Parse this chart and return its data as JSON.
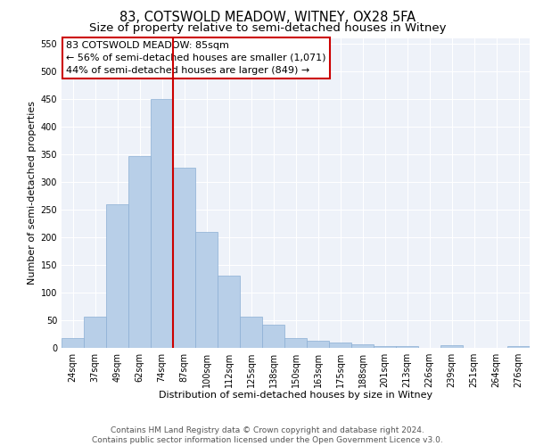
{
  "title": "83, COTSWOLD MEADOW, WITNEY, OX28 5FA",
  "subtitle": "Size of property relative to semi-detached houses in Witney",
  "xlabel": "Distribution of semi-detached houses by size in Witney",
  "ylabel": "Number of semi-detached properties",
  "categories": [
    "24sqm",
    "37sqm",
    "49sqm",
    "62sqm",
    "74sqm",
    "87sqm",
    "100sqm",
    "112sqm",
    "125sqm",
    "138sqm",
    "150sqm",
    "163sqm",
    "175sqm",
    "188sqm",
    "201sqm",
    "213sqm",
    "226sqm",
    "239sqm",
    "251sqm",
    "264sqm",
    "276sqm"
  ],
  "values": [
    18,
    57,
    260,
    347,
    449,
    325,
    210,
    130,
    57,
    42,
    17,
    13,
    10,
    7,
    4,
    4,
    0,
    5,
    0,
    0,
    4
  ],
  "bar_color": "#b8cfe8",
  "bar_edge_color": "#8bafd4",
  "vline_color": "#cc0000",
  "vline_x": 4.5,
  "annotation_box_text": "83 COTSWOLD MEADOW: 85sqm\n← 56% of semi-detached houses are smaller (1,071)\n44% of semi-detached houses are larger (849) →",
  "annotation_box_edge_color": "#cc0000",
  "ylim": [
    0,
    560
  ],
  "yticks": [
    0,
    50,
    100,
    150,
    200,
    250,
    300,
    350,
    400,
    450,
    500,
    550
  ],
  "footer_text": "Contains HM Land Registry data © Crown copyright and database right 2024.\nContains public sector information licensed under the Open Government Licence v3.0.",
  "bg_color": "#eef2f9",
  "grid_color": "#ffffff",
  "title_fontsize": 10.5,
  "subtitle_fontsize": 9.5,
  "axis_label_fontsize": 8,
  "tick_fontsize": 7,
  "annotation_fontsize": 8,
  "footer_fontsize": 6.5
}
